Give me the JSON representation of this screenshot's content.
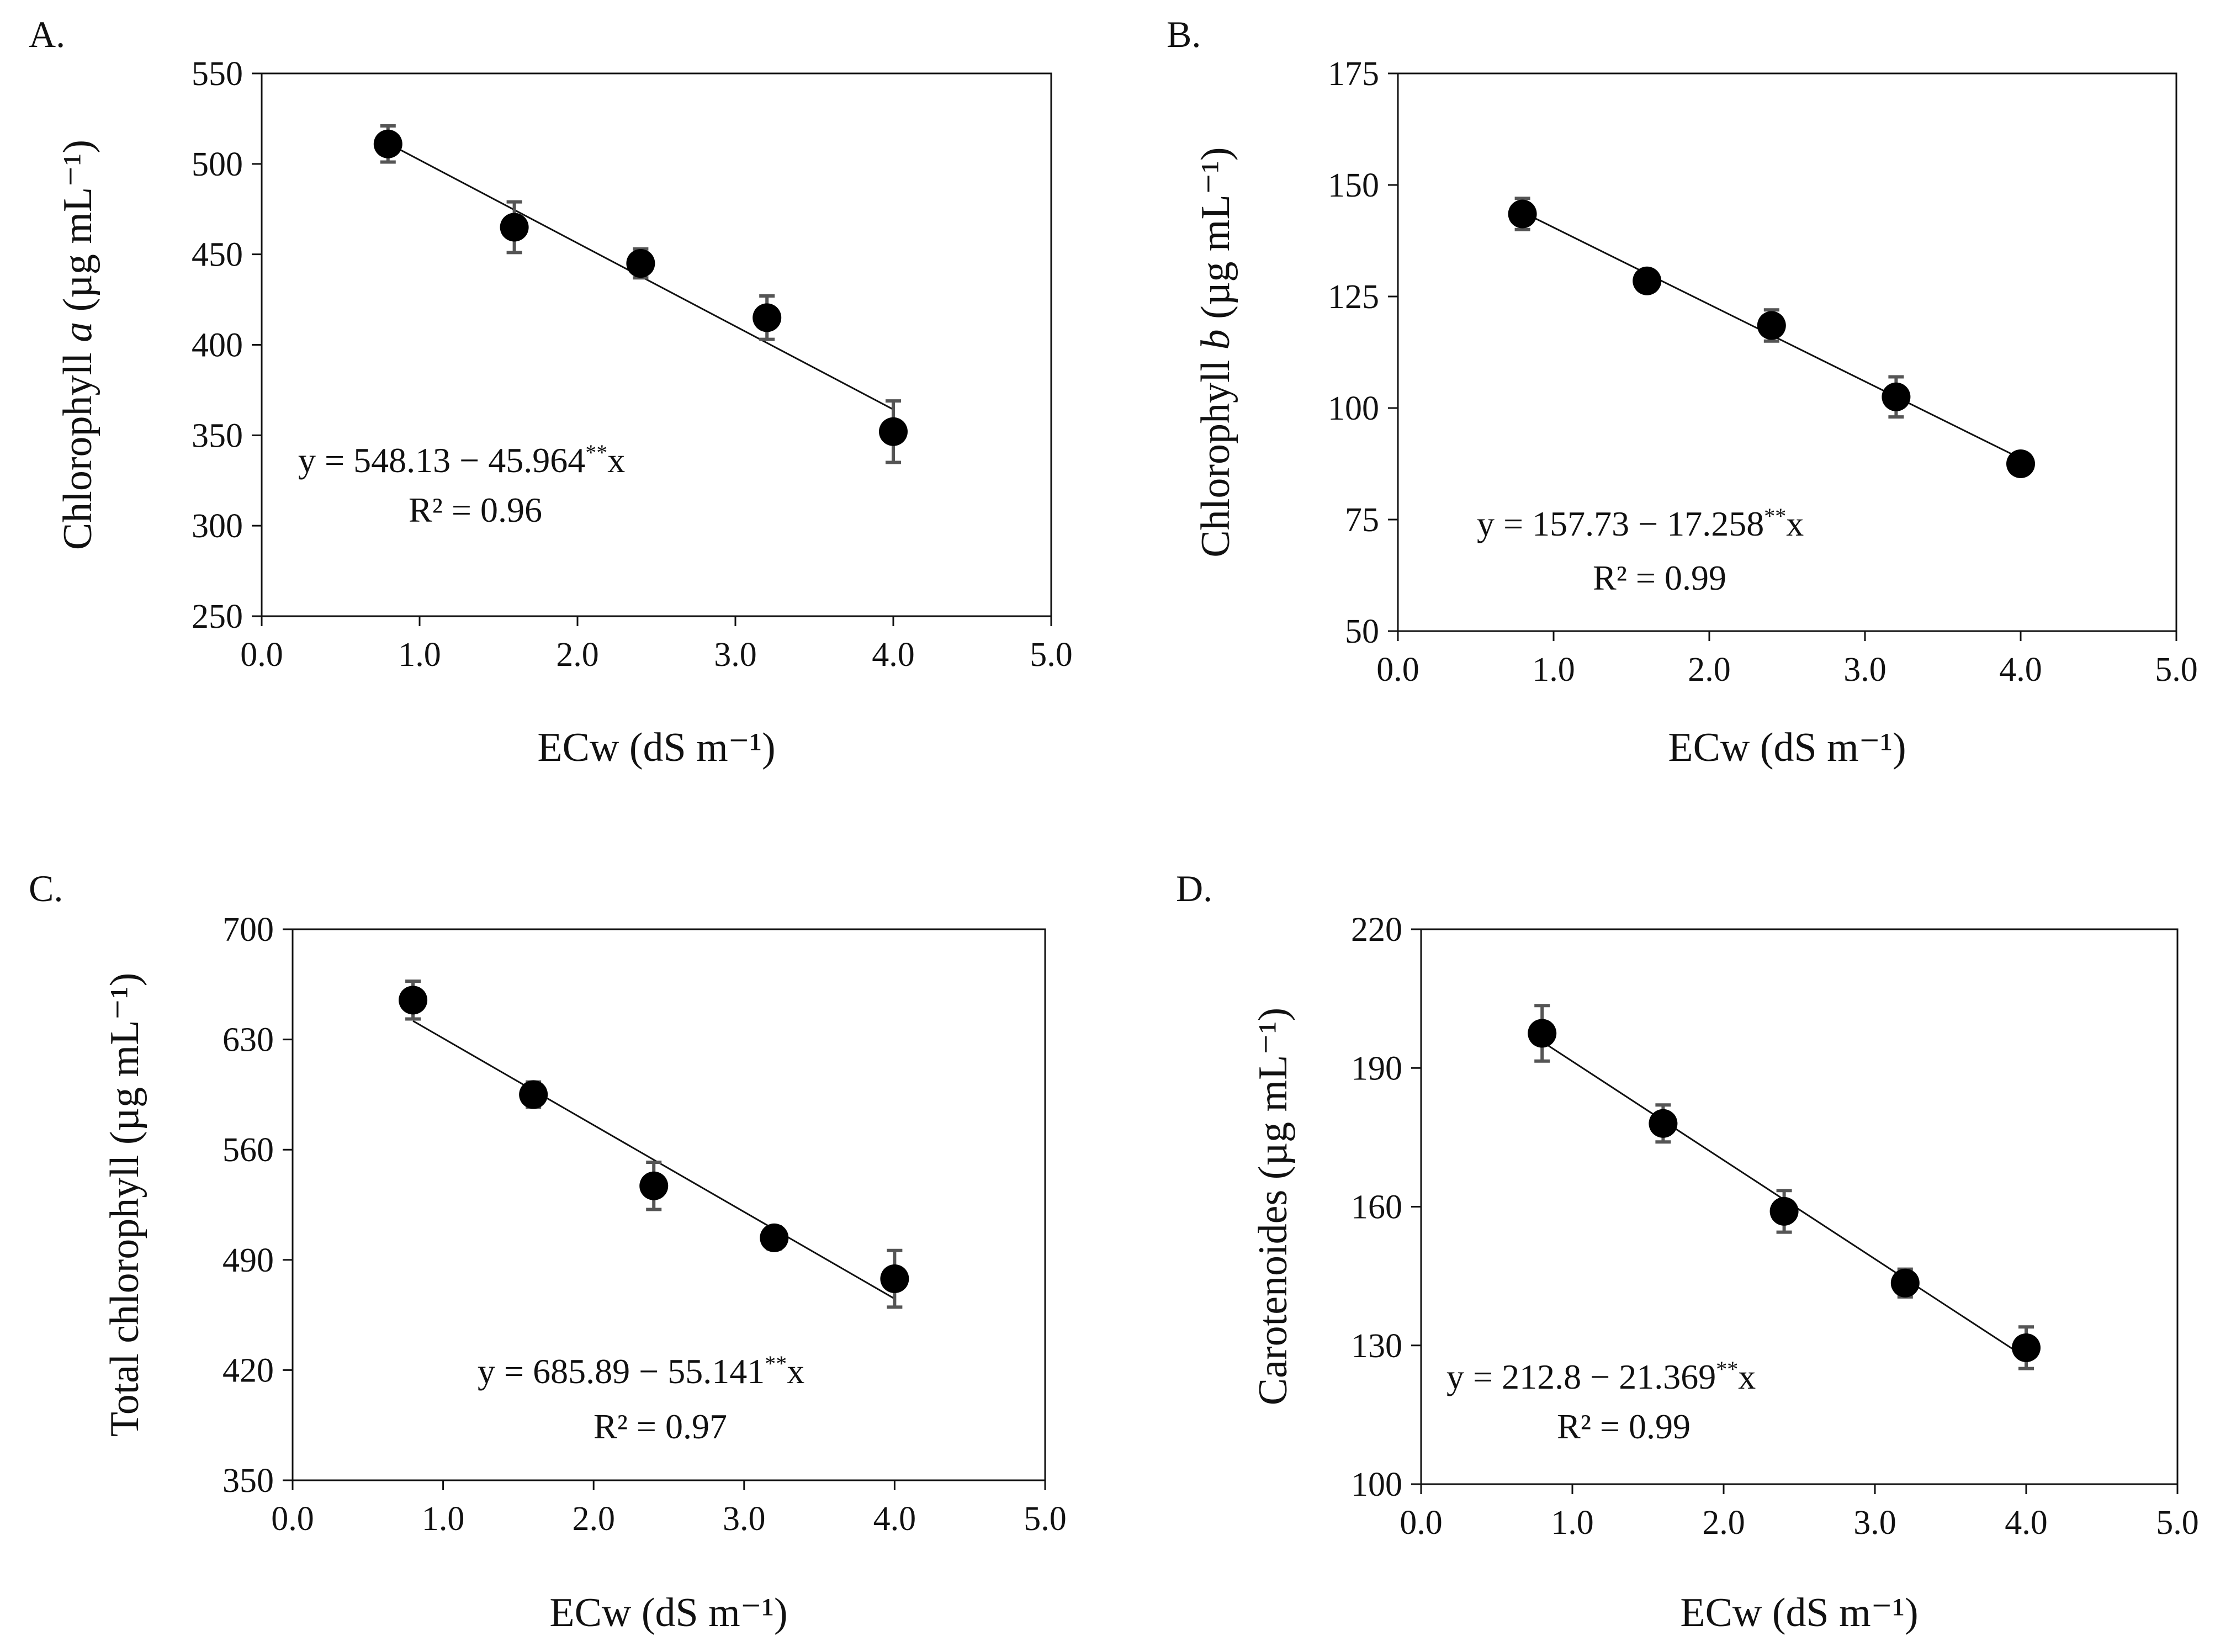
{
  "colors": {
    "ink": "#111111",
    "marker": "#000000",
    "error_bar": "#555555"
  },
  "chart_data": [
    {
      "type": "scatter",
      "panel": "A.",
      "x": [
        0.8,
        1.6,
        2.4,
        3.2,
        4.0
      ],
      "y": [
        511,
        465,
        445,
        415,
        352
      ],
      "err": [
        10,
        14,
        8,
        12,
        17
      ],
      "xlim": [
        0,
        5
      ],
      "ylim": [
        250,
        550
      ],
      "xticks": [
        "0.0",
        "1.0",
        "2.0",
        "3.0",
        "4.0",
        "5.0"
      ],
      "yticks": [
        "250",
        "300",
        "350",
        "400",
        "450",
        "500",
        "550"
      ],
      "xlabel": "ECw (dS m⁻¹)",
      "ylabel": {
        "pre": "Chlorophyll ",
        "var": "a",
        "post": " (µg mL⁻¹)"
      },
      "fit": {
        "intercept": 548.13,
        "slope": -45.964
      },
      "equation": {
        "body": "y = 548.13 − 45.964",
        "sup": "**",
        "tail": "x"
      },
      "r2": "R² = 0.96",
      "annot_pos": "lower-left"
    },
    {
      "type": "scatter",
      "panel": "B.",
      "x": [
        0.8,
        1.6,
        2.4,
        3.2,
        4.0
      ],
      "y": [
        143.5,
        128.5,
        118.5,
        102.5,
        87.5
      ],
      "err": [
        3.5,
        2,
        3.5,
        4.5,
        2
      ],
      "xlim": [
        0,
        5
      ],
      "ylim": [
        50,
        175
      ],
      "xticks": [
        "0.0",
        "1.0",
        "2.0",
        "3.0",
        "4.0",
        "5.0"
      ],
      "yticks": [
        "50",
        "75",
        "100",
        "125",
        "150",
        "175"
      ],
      "xlabel": "ECw (dS m⁻¹)",
      "ylabel": {
        "pre": "Chlorophyll ",
        "var": "b",
        "post": " (µg mL⁻¹)"
      },
      "fit": {
        "intercept": 157.73,
        "slope": -17.258
      },
      "equation": {
        "body": "y = 157.73 − 17.258",
        "sup": "**",
        "tail": "x"
      },
      "r2": "R² = 0.99",
      "annot_pos": "lower-left"
    },
    {
      "type": "scatter",
      "panel": "C.",
      "x": [
        0.8,
        1.6,
        2.4,
        3.2,
        4.0
      ],
      "y": [
        655,
        595,
        537,
        504,
        478
      ],
      "err": [
        12,
        8,
        15,
        7,
        18
      ],
      "xlim": [
        0,
        5
      ],
      "ylim": [
        350,
        700
      ],
      "xticks": [
        "0.0",
        "1.0",
        "2.0",
        "3.0",
        "4.0",
        "5.0"
      ],
      "yticks": [
        "350",
        "420",
        "490",
        "560",
        "630",
        "700"
      ],
      "xlabel": "ECw (dS m⁻¹)",
      "ylabel": {
        "pre": "Total chlorophyll ",
        "var": "",
        "post": "(µg mL⁻¹)"
      },
      "fit": {
        "intercept": 685.89,
        "slope": -55.141
      },
      "equation": {
        "body": "y = 685.89 − 55.141",
        "sup": "**",
        "tail": "x"
      },
      "r2": "R² = 0.97",
      "annot_pos": "lower-right"
    },
    {
      "type": "scatter",
      "panel": "D.",
      "x": [
        0.8,
        1.6,
        2.4,
        3.2,
        4.0
      ],
      "y": [
        197.5,
        178,
        159,
        143.5,
        129.5
      ],
      "err": [
        6,
        4,
        4.5,
        3,
        4.5
      ],
      "xlim": [
        0,
        5
      ],
      "ylim": [
        100,
        220
      ],
      "xticks": [
        "0.0",
        "1.0",
        "2.0",
        "3.0",
        "4.0",
        "5.0"
      ],
      "yticks": [
        "100",
        "130",
        "160",
        "190",
        "220"
      ],
      "xlabel": "ECw (dS m⁻¹)",
      "ylabel": {
        "pre": "Carotenoides (µg mL⁻¹)",
        "var": "",
        "post": ""
      },
      "fit": {
        "intercept": 212.8,
        "slope": -21.369
      },
      "equation": {
        "body": "y = 212.8 − 21.369",
        "sup": "**",
        "tail": "x"
      },
      "r2": "R² = 0.99",
      "annot_pos": "lower-left"
    }
  ]
}
